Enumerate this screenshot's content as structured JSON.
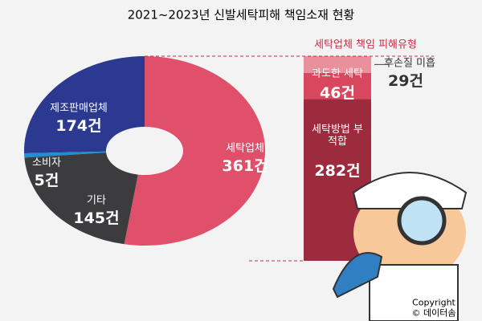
{
  "chart_data": [
    {
      "type": "pie",
      "title": "2021~2023년 신발세탁피해 책임소재 현황",
      "categories": [
        "세탁업체",
        "기타",
        "소비자",
        "제조판매업체"
      ],
      "values": [
        361,
        145,
        5,
        174
      ],
      "value_labels": [
        "361건",
        "145건",
        "5건",
        "174건"
      ],
      "colors": [
        "#e0506a",
        "#3c3c3e",
        "#1e8fd2",
        "#2b3990"
      ]
    },
    {
      "type": "bar",
      "stacked": true,
      "title": "세탁업체 책임 피해유형",
      "categories": [
        "후손질 미흡",
        "과도한 세탁",
        "세탁방법 부적합"
      ],
      "values": [
        29,
        46,
        282
      ],
      "value_labels": [
        "29건",
        "46건",
        "282건"
      ],
      "colors": [
        "#e8919c",
        "#d9475f",
        "#9b2b3d"
      ]
    }
  ],
  "copyright": "Copyright © 데이터솜"
}
